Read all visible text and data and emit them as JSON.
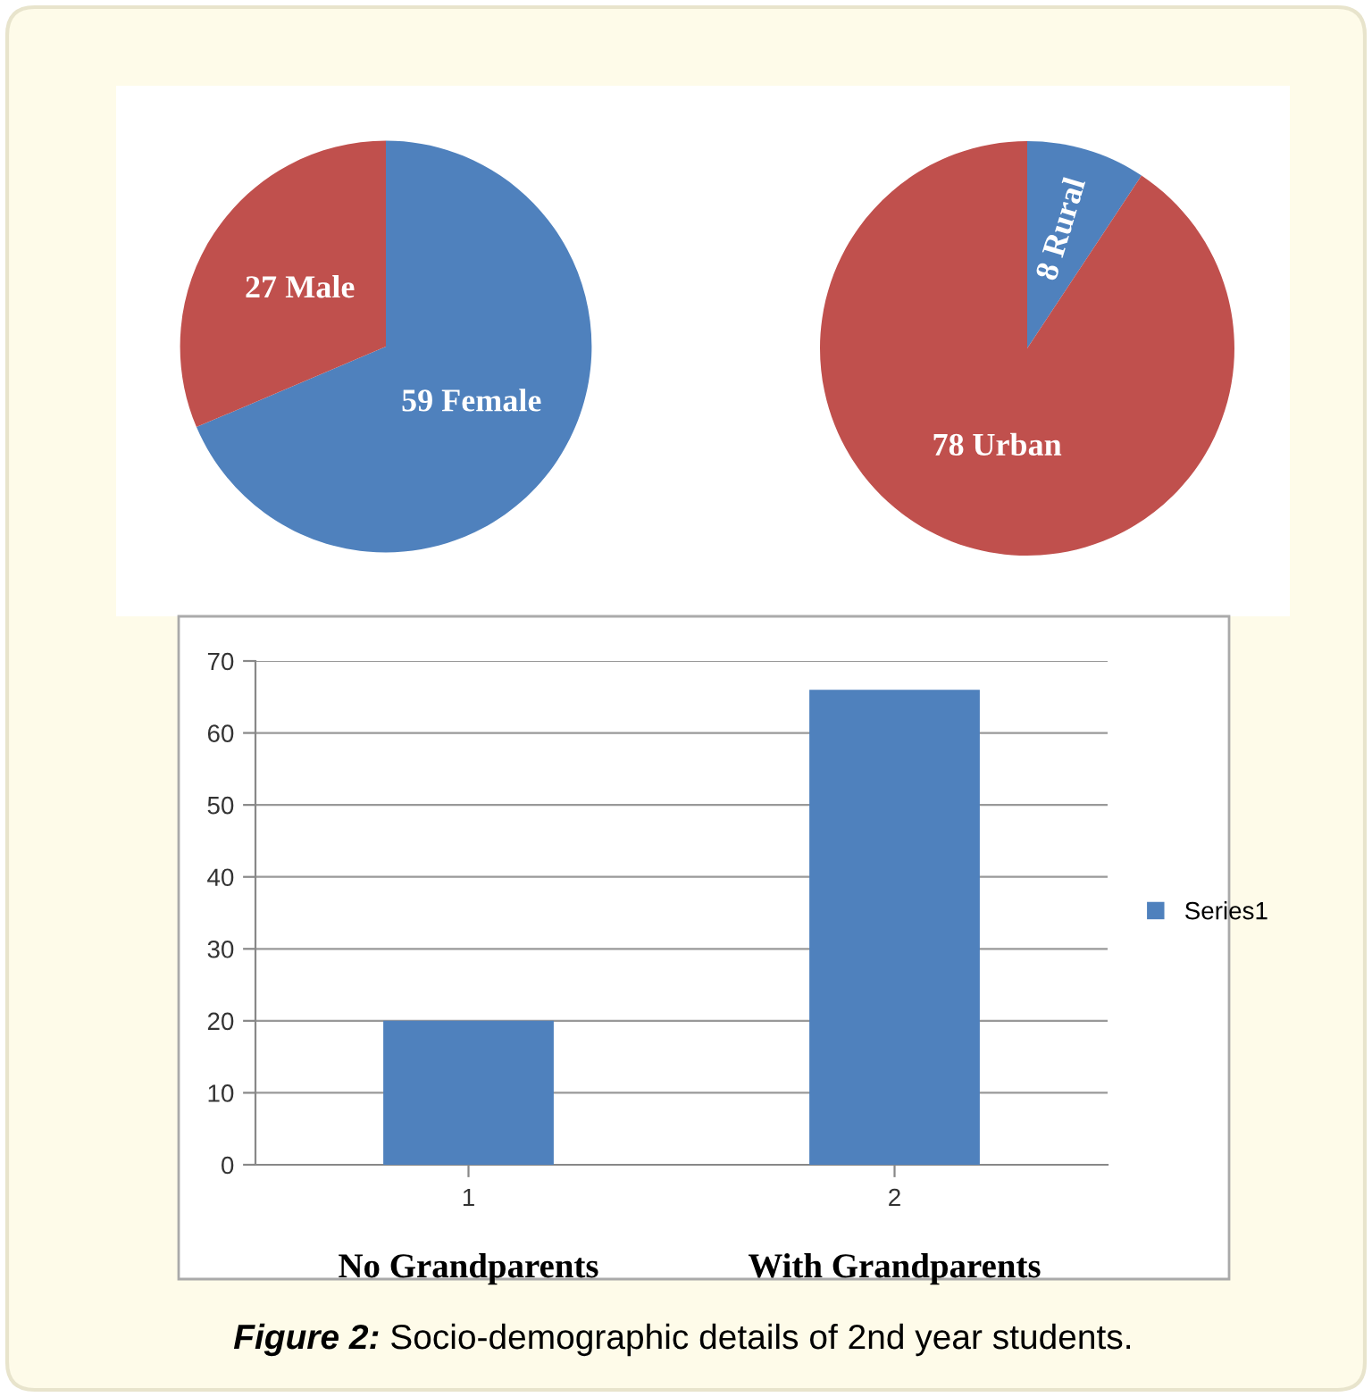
{
  "chart_data": [
    {
      "type": "pie",
      "categories": [
        "Female",
        "Male"
      ],
      "values": [
        59,
        27
      ],
      "colors": [
        "#4f81bd",
        "#c0504d"
      ],
      "data_labels": true
    },
    {
      "type": "pie",
      "categories": [
        "Rural",
        "Urban"
      ],
      "values": [
        8,
        78
      ],
      "colors": [
        "#4f81bd",
        "#c0504d"
      ],
      "data_labels": true
    },
    {
      "type": "bar",
      "categories": [
        "1",
        "2"
      ],
      "series": [
        {
          "name": "Series1",
          "color": "#4f81bd",
          "values": [
            20,
            66
          ]
        }
      ],
      "ylim": [
        0,
        70
      ],
      "yticks": [
        0,
        10,
        20,
        30,
        40,
        50,
        60,
        70
      ],
      "grid": "y",
      "legend": "right",
      "annotations": [
        "No Grandparents",
        "With Grandparents",
        "Figure 2: Socio-demographic details of 2nd year students."
      ]
    }
  ]
}
